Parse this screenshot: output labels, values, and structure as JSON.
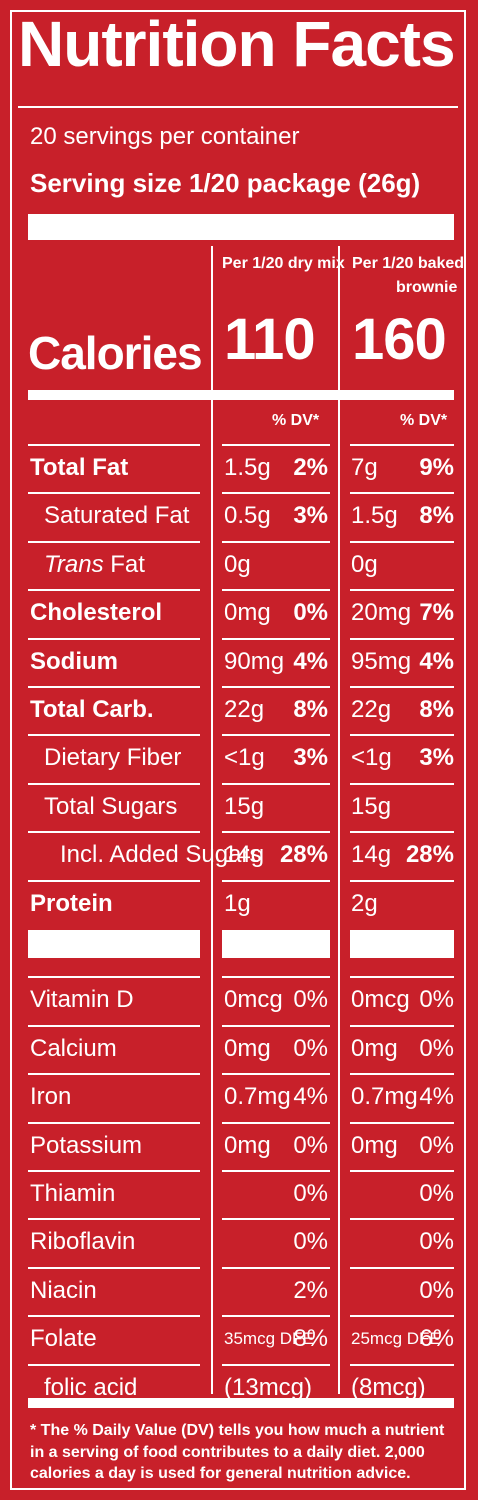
{
  "title": "Nutrition Facts",
  "servings_per_container": "20 servings per container",
  "serving_size": "Serving size 1/20 package (26g)",
  "columns": [
    {
      "header_line1": "Per 1/20 dry mix",
      "header_line2": "",
      "calories": "110",
      "dv_label": "% DV*"
    },
    {
      "header_line1": "Per 1/20 baked",
      "header_line2": "brownie",
      "calories": "160",
      "dv_label": "% DV*"
    }
  ],
  "calories_label": "Calories",
  "rows": [
    {
      "label": "Total Fat",
      "style": "bold",
      "c1_amt": "1.5g",
      "c1_pct": "2%",
      "c2_amt": "7g",
      "c2_pct": "9%"
    },
    {
      "label": "Saturated Fat",
      "style": "indent",
      "c1_amt": "0.5g",
      "c1_pct": "3%",
      "c2_amt": "1.5g",
      "c2_pct": "8%"
    },
    {
      "label_italic": "Trans",
      "label_rest": " Fat",
      "style": "indent",
      "c1_amt": "0g",
      "c1_pct": "",
      "c2_amt": "0g",
      "c2_pct": ""
    },
    {
      "label": "Cholesterol",
      "style": "bold",
      "c1_amt": "0mg",
      "c1_pct": "0%",
      "c2_amt": "20mg",
      "c2_pct": "7%"
    },
    {
      "label": "Sodium",
      "style": "bold",
      "c1_amt": "90mg",
      "c1_pct": "4%",
      "c2_amt": "95mg",
      "c2_pct": "4%"
    },
    {
      "label": "Total Carb.",
      "style": "bold",
      "c1_amt": "22g",
      "c1_pct": "8%",
      "c2_amt": "22g",
      "c2_pct": "8%"
    },
    {
      "label": "Dietary Fiber",
      "style": "indent",
      "c1_amt": "<1g",
      "c1_pct": "3%",
      "c2_amt": "<1g",
      "c2_pct": "3%"
    },
    {
      "label": "Total Sugars",
      "style": "indent",
      "c1_amt": "15g",
      "c1_pct": "",
      "c2_amt": "15g",
      "c2_pct": ""
    },
    {
      "label": "Incl. Added Sugars",
      "style": "indent2",
      "c1_amt": "14g",
      "c1_pct": "28%",
      "c2_amt": "14g",
      "c2_pct": "28%"
    },
    {
      "label": "Protein",
      "style": "bold",
      "c1_amt": "1g",
      "c1_pct": "",
      "c2_amt": "2g",
      "c2_pct": ""
    }
  ],
  "vitamins": [
    {
      "label": "Vitamin D",
      "c1_amt": "0mcg",
      "c1_pct": "0%",
      "c2_amt": "0mcg",
      "c2_pct": "0%"
    },
    {
      "label": "Calcium",
      "c1_amt": "0mg",
      "c1_pct": "0%",
      "c2_amt": "0mg",
      "c2_pct": "0%"
    },
    {
      "label": "Iron",
      "c1_amt": "0.7mg",
      "c1_pct": "4%",
      "c2_amt": "0.7mg",
      "c2_pct": "4%"
    },
    {
      "label": "Potassium",
      "c1_amt": "0mg",
      "c1_pct": "0%",
      "c2_amt": "0mg",
      "c2_pct": "0%"
    },
    {
      "label": "Thiamin",
      "c1_amt": "",
      "c1_pct": "0%",
      "c2_amt": "",
      "c2_pct": "0%"
    },
    {
      "label": "Riboflavin",
      "c1_amt": "",
      "c1_pct": "0%",
      "c2_amt": "",
      "c2_pct": "0%"
    },
    {
      "label": "Niacin",
      "c1_amt": "",
      "c1_pct": "2%",
      "c2_amt": "",
      "c2_pct": "0%"
    },
    {
      "label": "Folate",
      "c1_amt": "35mcg DFE",
      "c1_pct": "8%",
      "c2_amt": "25mcg DFE",
      "c2_pct": "6%",
      "small_amt": true
    },
    {
      "label": "folic acid",
      "indent": true,
      "c1_amt": "(13mcg)",
      "c1_pct": "",
      "c2_amt": "(8mcg)",
      "c2_pct": ""
    }
  ],
  "footnote": "* The % Daily Value (DV) tells you how much a nutrient in a serving of food contributes to a daily diet. 2,000 calories a day is used for general nutrition advice.",
  "colors": {
    "background": "#c8202a",
    "ink": "#ffffff"
  }
}
